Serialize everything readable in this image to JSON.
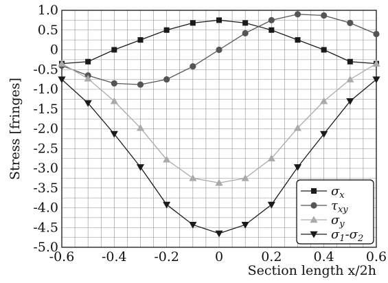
{
  "chart_data": {
    "type": "line",
    "xlabel": "Section length x/2h",
    "ylabel": "Stress [fringes]",
    "xlim": [
      -0.6,
      0.6
    ],
    "ylim": [
      -5.0,
      1.0
    ],
    "xticks": [
      -0.6,
      -0.4,
      -0.2,
      0,
      0.2,
      0.4,
      0.6
    ],
    "xtick_labels": [
      "-0.6",
      "-0.4",
      "-0.2",
      "0",
      "0.2",
      "0.4",
      "0.6"
    ],
    "yticks": [
      1.0,
      0.5,
      0,
      -0.5,
      -1.0,
      -1.5,
      -2.0,
      -2.5,
      -3.0,
      -3.5,
      -4.0,
      -4.5,
      -5.0
    ],
    "ytick_labels": [
      "1.0",
      "0.5",
      "0",
      "-0.5",
      "-1.0",
      "-1.5",
      "-2.0",
      "-2.5",
      "-3.0",
      "-3.5",
      "-4.0",
      "-4.5",
      "-5.0"
    ],
    "grid": true,
    "legend_position": "bottom-right",
    "series": [
      {
        "name": "σx",
        "name_parts": {
          "main": "σ",
          "sub": "x"
        },
        "marker": "square",
        "color": "#1a1a1a",
        "x": [
          -0.6,
          -0.5,
          -0.4,
          -0.3,
          -0.2,
          -0.1,
          0.0,
          0.1,
          0.2,
          0.3,
          0.4,
          0.5,
          0.6
        ],
        "y": [
          -0.35,
          -0.3,
          0.0,
          0.25,
          0.5,
          0.68,
          0.75,
          0.68,
          0.5,
          0.25,
          0.0,
          -0.3,
          -0.35
        ]
      },
      {
        "name": "τxy",
        "name_parts": {
          "main": "τ",
          "sub": "xy"
        },
        "marker": "circle",
        "color": "#555555",
        "x": [
          -0.6,
          -0.5,
          -0.4,
          -0.3,
          -0.2,
          -0.1,
          0.0,
          0.1,
          0.2,
          0.3,
          0.4,
          0.5,
          0.6
        ],
        "y": [
          -0.4,
          -0.65,
          -0.85,
          -0.88,
          -0.75,
          -0.42,
          0.0,
          0.42,
          0.75,
          0.9,
          0.87,
          0.68,
          0.4
        ]
      },
      {
        "name": "σy",
        "name_parts": {
          "main": "σ",
          "sub": "y"
        },
        "marker": "triangle-up",
        "color": "#aaaaaa",
        "x": [
          -0.6,
          -0.5,
          -0.4,
          -0.3,
          -0.2,
          -0.1,
          0.0,
          0.1,
          0.2,
          0.3,
          0.4,
          0.5,
          0.6
        ],
        "y": [
          -0.35,
          -0.73,
          -1.3,
          -1.98,
          -2.78,
          -3.25,
          -3.37,
          -3.25,
          -2.75,
          -1.98,
          -1.3,
          -0.75,
          -0.35
        ]
      },
      {
        "name": "σ1-σ2",
        "name_parts": {
          "main": "σ",
          "sub": "1",
          "mid": "-σ",
          "sub2": "2"
        },
        "marker": "triangle-down",
        "color": "#1a1a1a",
        "x": [
          -0.6,
          -0.5,
          -0.4,
          -0.3,
          -0.2,
          -0.1,
          0.0,
          0.1,
          0.2,
          0.3,
          0.4,
          0.5,
          0.6
        ],
        "y": [
          -0.75,
          -1.35,
          -2.13,
          -2.97,
          -3.92,
          -4.43,
          -4.65,
          -4.43,
          -3.92,
          -2.97,
          -2.13,
          -1.3,
          -0.75
        ]
      }
    ]
  }
}
